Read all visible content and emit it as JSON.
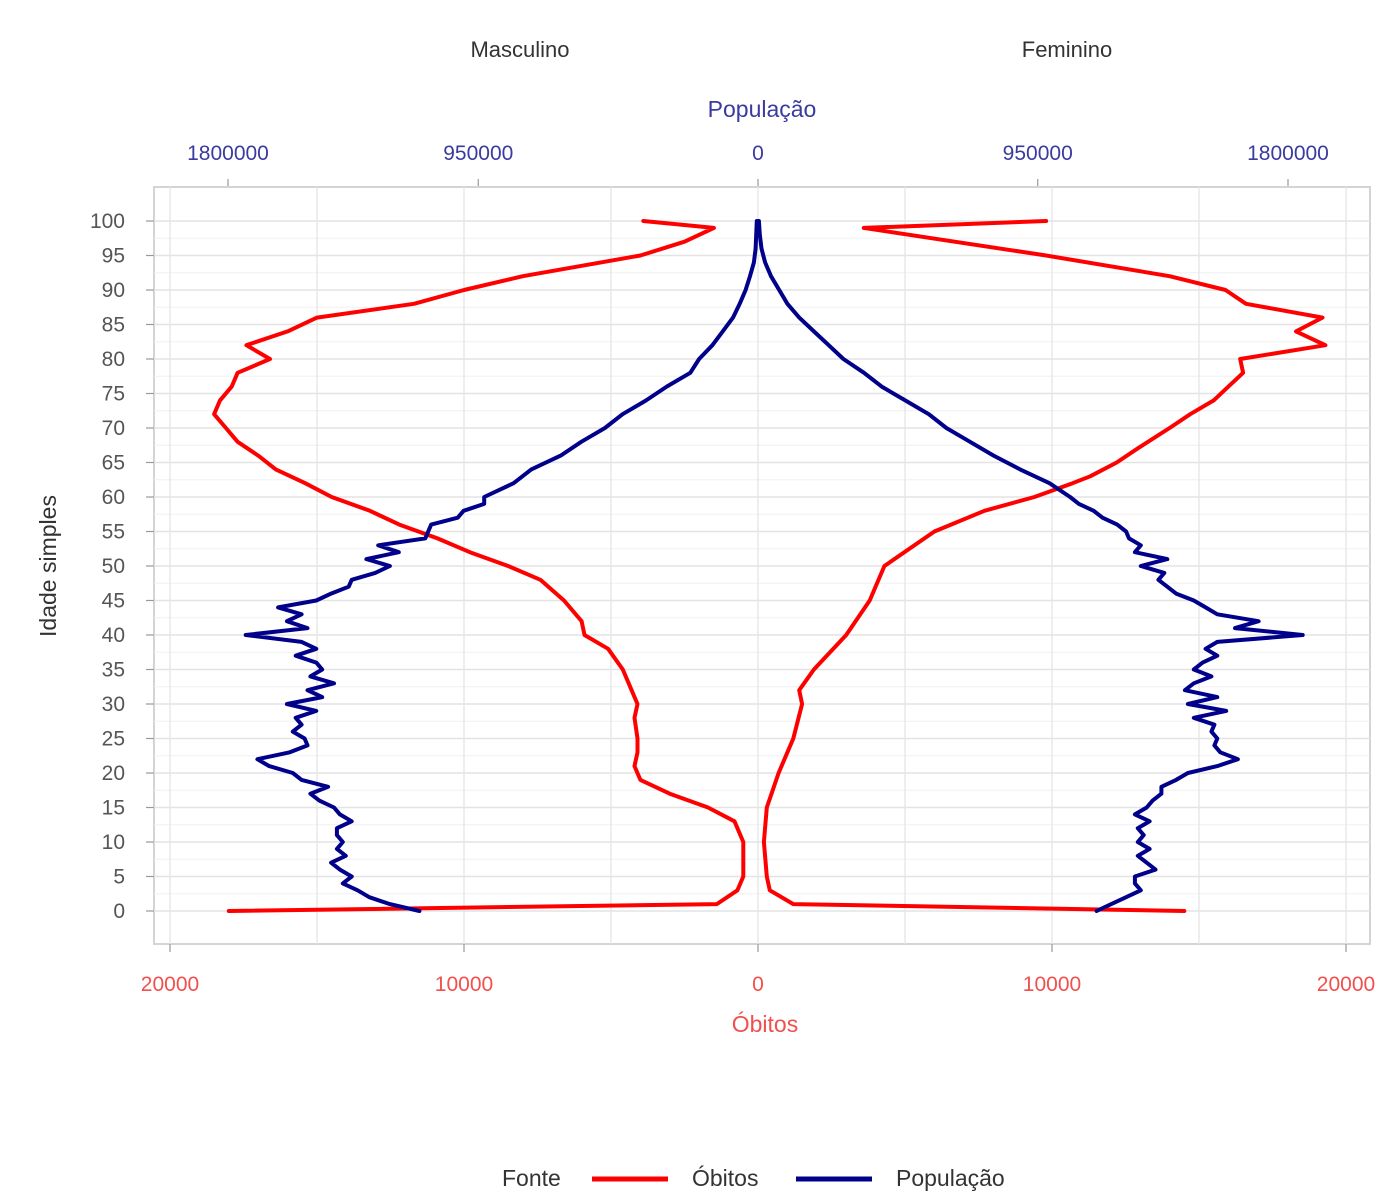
{
  "chart_data": {
    "type": "line",
    "facets": [
      "Masculino",
      "Feminino"
    ],
    "top_axis": {
      "title": "População",
      "ticks": [
        1800000,
        950000,
        0,
        950000,
        1800000
      ],
      "tick_labels": [
        "1800000",
        "950000",
        "0",
        "950000",
        "1800000"
      ],
      "range": [
        0,
        1800000
      ],
      "color": "#3a3aa0"
    },
    "bottom_axis": {
      "title": "Óbitos",
      "ticks": [
        20000,
        10000,
        0,
        10000,
        20000
      ],
      "tick_labels": [
        "20000",
        "10000",
        "0",
        "10000",
        "20000"
      ],
      "range": [
        0,
        20000
      ],
      "color": "#f0504e"
    },
    "y_axis": {
      "title": "Idade simples",
      "ticks": [
        0,
        5,
        10,
        15,
        20,
        25,
        30,
        35,
        40,
        45,
        50,
        55,
        60,
        65,
        70,
        75,
        80,
        85,
        90,
        95,
        100
      ],
      "tick_labels": [
        "0",
        "5",
        "10",
        "15",
        "20",
        "25",
        "30",
        "35",
        "40",
        "45",
        "50",
        "55",
        "60",
        "65",
        "70",
        "75",
        "80",
        "85",
        "90",
        "95",
        "100"
      ]
    },
    "legend": {
      "title": "Fonte",
      "position": "bottom",
      "items": [
        {
          "label": "Óbitos",
          "color": "#ff0000"
        },
        {
          "label": "População",
          "color": "#00008b"
        }
      ]
    },
    "series": [
      {
        "name": "Óbitos",
        "side": "Masculino",
        "color": "#ff0000",
        "ages": [
          0,
          1,
          3,
          5,
          10,
          13,
          15,
          17,
          19,
          21,
          23,
          25,
          28,
          30,
          32,
          35,
          38,
          40,
          42,
          45,
          48,
          50,
          52,
          54,
          56,
          58,
          60,
          62,
          64,
          66,
          68,
          70,
          72,
          74,
          76,
          78,
          80,
          82,
          84,
          86,
          88,
          90,
          92,
          95,
          97,
          99,
          100
        ],
        "values": [
          18000,
          1400,
          700,
          500,
          500,
          800,
          1700,
          3000,
          4000,
          4200,
          4100,
          4100,
          4200,
          4100,
          4300,
          4600,
          5100,
          5900,
          6000,
          6600,
          7400,
          8500,
          9800,
          10900,
          12200,
          13200,
          14500,
          15400,
          16400,
          17000,
          17700,
          18100,
          18500,
          18300,
          17900,
          17700,
          16600,
          17400,
          16000,
          15000,
          11700,
          10000,
          8000,
          4000,
          2500,
          1500,
          3900
        ]
      },
      {
        "name": "Óbitos",
        "side": "Feminino",
        "color": "#ff0000",
        "ages": [
          0,
          1,
          3,
          5,
          10,
          15,
          20,
          25,
          30,
          32,
          35,
          40,
          45,
          50,
          55,
          58,
          60,
          62,
          63,
          65,
          67,
          70,
          72,
          74,
          76,
          78,
          80,
          82,
          84,
          86,
          88,
          90,
          92,
          95,
          99,
          100
        ],
        "values": [
          14500,
          1200,
          400,
          300,
          200,
          300,
          700,
          1200,
          1500,
          1400,
          1900,
          3000,
          3800,
          4300,
          6000,
          7700,
          9400,
          10700,
          11300,
          12200,
          12900,
          14000,
          14700,
          15500,
          16000,
          16500,
          16400,
          19300,
          18300,
          19200,
          16600,
          15900,
          14000,
          9800,
          3600,
          9800
        ]
      },
      {
        "name": "População",
        "side": "Masculino",
        "color": "#00008b",
        "ages": [
          0,
          1,
          2,
          3,
          4,
          5,
          6,
          7,
          8,
          9,
          10,
          11,
          12,
          13,
          14,
          15,
          16,
          17,
          18,
          19,
          20,
          21,
          22,
          23,
          24,
          25,
          26,
          27,
          28,
          29,
          30,
          31,
          32,
          33,
          34,
          35,
          36,
          37,
          38,
          39,
          40,
          41,
          42,
          43,
          44,
          45,
          46,
          47,
          48,
          49,
          50,
          51,
          52,
          53,
          54,
          55,
          56,
          57,
          58,
          59,
          60,
          62,
          64,
          66,
          68,
          70,
          72,
          74,
          76,
          78,
          80,
          82,
          84,
          86,
          88,
          90,
          92,
          94,
          96,
          98,
          100
        ],
        "values": [
          1150000,
          1250000,
          1320000,
          1360000,
          1410000,
          1380000,
          1420000,
          1450000,
          1400000,
          1430000,
          1410000,
          1430000,
          1430000,
          1380000,
          1420000,
          1440000,
          1490000,
          1520000,
          1460000,
          1550000,
          1580000,
          1660000,
          1700000,
          1590000,
          1530000,
          1540000,
          1580000,
          1550000,
          1570000,
          1500000,
          1600000,
          1480000,
          1530000,
          1440000,
          1520000,
          1480000,
          1500000,
          1570000,
          1500000,
          1550000,
          1740000,
          1530000,
          1600000,
          1550000,
          1630000,
          1500000,
          1450000,
          1390000,
          1380000,
          1300000,
          1250000,
          1330000,
          1220000,
          1290000,
          1130000,
          1120000,
          1110000,
          1020000,
          1000000,
          930000,
          930000,
          830000,
          770000,
          670000,
          600000,
          520000,
          460000,
          380000,
          310000,
          230000,
          200000,
          155000,
          120000,
          85000,
          62000,
          42000,
          27000,
          14000,
          8000,
          6000,
          4000
        ]
      },
      {
        "name": "População",
        "side": "Feminino",
        "color": "#00008b",
        "ages": [
          0,
          1,
          2,
          3,
          4,
          5,
          6,
          7,
          8,
          9,
          10,
          11,
          12,
          13,
          14,
          15,
          16,
          17,
          18,
          19,
          20,
          21,
          22,
          23,
          24,
          25,
          26,
          27,
          28,
          29,
          30,
          31,
          32,
          33,
          34,
          35,
          36,
          37,
          38,
          39,
          40,
          41,
          42,
          43,
          44,
          45,
          46,
          47,
          48,
          49,
          50,
          51,
          52,
          53,
          54,
          55,
          56,
          57,
          58,
          59,
          60,
          62,
          64,
          66,
          68,
          70,
          72,
          74,
          76,
          78,
          80,
          82,
          84,
          86,
          88,
          90,
          92,
          94,
          96,
          98,
          100
        ],
        "values": [
          1150000,
          1200000,
          1250000,
          1300000,
          1280000,
          1280000,
          1350000,
          1320000,
          1290000,
          1330000,
          1290000,
          1310000,
          1290000,
          1330000,
          1280000,
          1320000,
          1340000,
          1370000,
          1370000,
          1420000,
          1460000,
          1560000,
          1630000,
          1570000,
          1550000,
          1560000,
          1540000,
          1550000,
          1480000,
          1590000,
          1460000,
          1560000,
          1450000,
          1480000,
          1540000,
          1480000,
          1510000,
          1560000,
          1520000,
          1560000,
          1850000,
          1620000,
          1700000,
          1560000,
          1520000,
          1480000,
          1420000,
          1390000,
          1360000,
          1380000,
          1300000,
          1390000,
          1280000,
          1300000,
          1260000,
          1250000,
          1220000,
          1170000,
          1140000,
          1090000,
          1060000,
          990000,
          890000,
          800000,
          720000,
          640000,
          580000,
          500000,
          420000,
          360000,
          290000,
          240000,
          190000,
          140000,
          100000,
          72000,
          44000,
          24000,
          12000,
          6000,
          3000
        ]
      }
    ]
  }
}
